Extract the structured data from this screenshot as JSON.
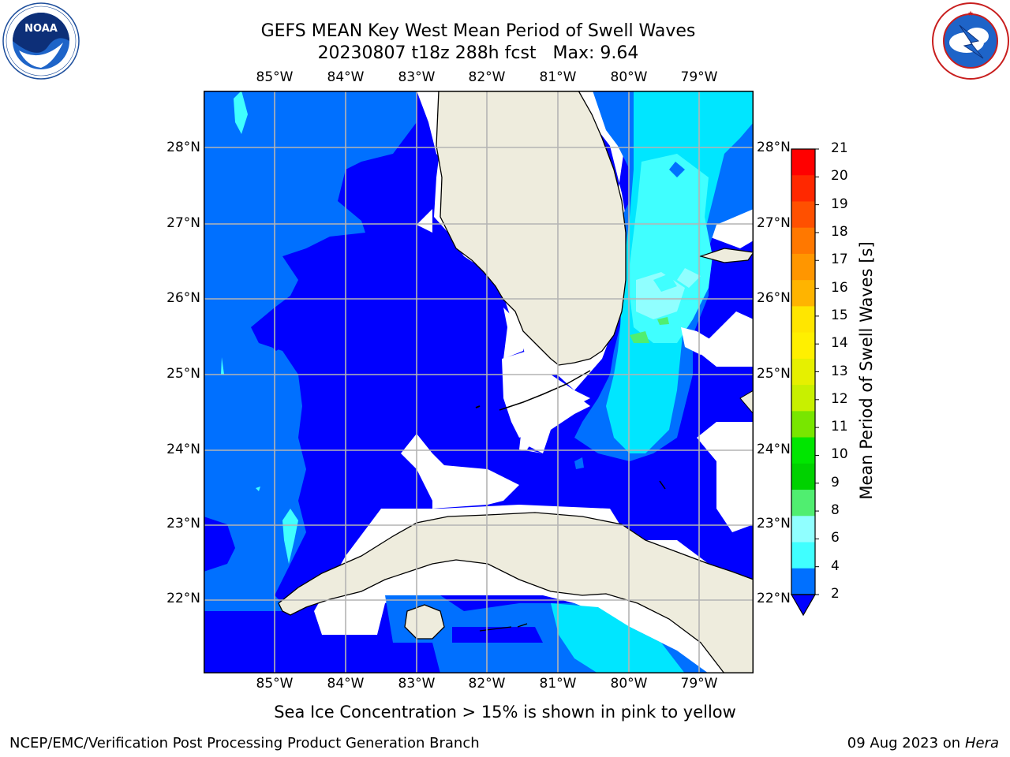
{
  "title": {
    "line1": "GEFS MEAN Key West Mean Period of Swell Waves",
    "line2": "20230807 t18z 288h fcst",
    "max": "Max: 9.64"
  },
  "logos": {
    "left": "noara-logo",
    "left_text": "NOAA",
    "left_ring": "NATIONAL OCEANIC AND ATMOSPHERIC ADMINISTRATION · U.S. DEPARTMENT OF COMMERCE",
    "right": "nws-logo",
    "right_ring": "NATIONAL WEATHER SERVICE"
  },
  "map": {
    "lon_labels": [
      "85°W",
      "84°W",
      "83°W",
      "82°W",
      "81°W",
      "80°W",
      "79°W"
    ],
    "lat_labels": [
      "28°N",
      "27°N",
      "26°N",
      "25°N",
      "24°N",
      "23°N",
      "22°N"
    ],
    "colors": {
      "land": "#eeecdd",
      "deep": "#0000ff",
      "mid": "#0070ff",
      "light": "#00e6ff",
      "lighter": "#40ffff",
      "pale": "#90ffff",
      "green": "#50ee70",
      "grid": "#b4b4b4"
    }
  },
  "colorbar": {
    "title": "Mean Period of Swell Waves [s]",
    "labels": [
      "21",
      "20",
      "19",
      "18",
      "17",
      "16",
      "15",
      "14",
      "13",
      "12",
      "11",
      "10",
      "9",
      "8",
      "6",
      "4",
      "2"
    ],
    "colors": [
      "#ff0000",
      "#ff2800",
      "#ff5000",
      "#ff7800",
      "#ff9600",
      "#ffb400",
      "#ffe600",
      "#fff000",
      "#e6f000",
      "#c8f000",
      "#78e600",
      "#00e600",
      "#00d200",
      "#50ee70",
      "#90ffff",
      "#40ffff",
      "#00e6ff",
      "#0070ff"
    ]
  },
  "subtitle": "Sea Ice Concentration > 15% is shown in pink to yellow",
  "footer": {
    "left": "NCEP/EMC/Verification Post Processing Product Generation Branch",
    "date": "09 Aug 2023 on",
    "host": "Hera"
  }
}
